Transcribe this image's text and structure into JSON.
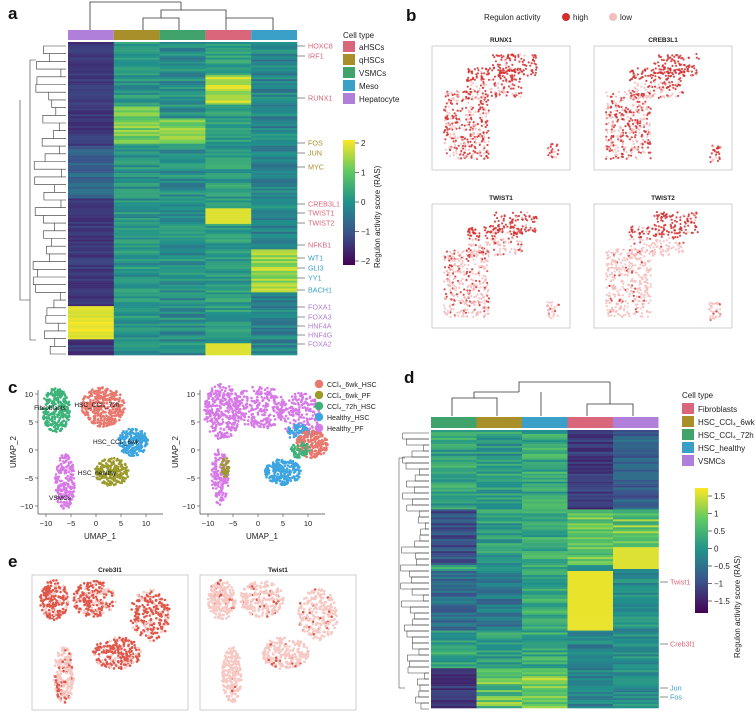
{
  "panels": {
    "a": "a",
    "b": "b",
    "c": "c",
    "d": "d",
    "e": "e"
  },
  "colors": {
    "aHSCs": "#d9667a",
    "qHSCs": "#a88f2a",
    "VSMCs": "#3fa36b",
    "Meso": "#3aa0c8",
    "Hepatocytes": "#b07fd9",
    "Fibroblasts": "#d9667a",
    "HSC_CCl4_6wk": "#a88f2a",
    "HSC_CCl4_72h": "#3fa36b",
    "HSC_healthy": "#3aa0c8",
    "VSMCs_d": "#b07fd9",
    "high": "#d32f2f",
    "low": "#f4bcbc",
    "CCl4_6wk_HSC": "#e8776d",
    "CCl4_6wk_PF": "#9c9a2b",
    "CCl4_72h_HSC": "#3db37a",
    "Healthy_HSC": "#3da5e0",
    "Healthy_PF": "#d77ae6"
  },
  "panel_a": {
    "legend_title": "Cell type",
    "legend_items": [
      "aHSCs",
      "qHSCs",
      "VSMCs",
      "Meso",
      "Hepatocytes"
    ],
    "column_order": [
      "Hepatocytes",
      "qHSCs",
      "VSMCs",
      "aHSCs",
      "Meso"
    ],
    "colorbar": {
      "label": "Regulon activity score (RAS)",
      "ticks": [
        "2",
        "1",
        "0",
        "−1",
        "−2"
      ]
    },
    "genes": [
      {
        "name": "HOXC8",
        "group": "aHSCs"
      },
      {
        "name": "IRF1",
        "group": "aHSCs"
      },
      {
        "name": "RUNX1",
        "group": "aHSCs"
      },
      {
        "name": "FOS",
        "group": "qHSCs"
      },
      {
        "name": "JUN",
        "group": "qHSCs"
      },
      {
        "name": "MYC",
        "group": "qHSCs"
      },
      {
        "name": "CREB3L1",
        "group": "aHSCs"
      },
      {
        "name": "TWIST1",
        "group": "aHSCs"
      },
      {
        "name": "TWIST2",
        "group": "aHSCs"
      },
      {
        "name": "NFKB1",
        "group": "aHSCs"
      },
      {
        "name": "WT1",
        "group": "Meso"
      },
      {
        "name": "GLI3",
        "group": "Meso"
      },
      {
        "name": "YY1",
        "group": "Meso"
      },
      {
        "name": "BACH1",
        "group": "Meso"
      },
      {
        "name": "FOXA1",
        "group": "Hepatocytes"
      },
      {
        "name": "FOXA3",
        "group": "Hepatocytes"
      },
      {
        "name": "HNF4A",
        "group": "Hepatocytes"
      },
      {
        "name": "HNF4G",
        "group": "Hepatocytes"
      },
      {
        "name": "FOXA2",
        "group": "Hepatocytes"
      }
    ]
  },
  "panel_b": {
    "legend_title": "Regulon activity",
    "legend_high": "high",
    "legend_low": "low",
    "plots": [
      "RUNX1",
      "CREB3L1",
      "TWIST1",
      "TWIST2"
    ]
  },
  "panel_c": {
    "legend_items": [
      {
        "label": "CCl₄_6wk_HSC",
        "key": "CCl4_6wk_HSC"
      },
      {
        "label": "CCl₄_6wk_PF",
        "key": "CCl4_6wk_PF"
      },
      {
        "label": "CCl₄_72h_HSC",
        "key": "CCl4_72h_HSC"
      },
      {
        "label": "Healthy_HSC",
        "key": "Healthy_HSC"
      },
      {
        "label": "Healthy_PF",
        "key": "Healthy_PF"
      }
    ],
    "cluster_labels": [
      "Fibroblasts",
      "HSC_CCl₄_72h",
      "HSC_CCl₄_6wk",
      "HSC_healthy",
      "VSMCs"
    ],
    "xlabel": "UMAP_1",
    "ylabel": "UMAP_2",
    "xticks": [
      "−10",
      "−5",
      "0",
      "5",
      "10"
    ],
    "yticks": [
      "10",
      "5",
      "0",
      "−5",
      "−10"
    ]
  },
  "panel_d": {
    "legend_title": "Cell type",
    "legend_items": [
      "Fibroblasts",
      "HSC_CCl₄_6wk",
      "HSC_CCl₄_72h",
      "HSC_healthy",
      "VSMCs"
    ],
    "colorbar": {
      "label": "Regulon activity score (RAS)",
      "ticks": [
        "1.5",
        "1",
        "0.5",
        "0",
        "−0.5",
        "−1",
        "−1.5"
      ]
    },
    "genes": [
      {
        "name": "Twist1",
        "group": "Fibroblasts"
      },
      {
        "name": "Creb3l1",
        "group": "Fibroblasts"
      },
      {
        "name": "Jun",
        "group": "HSC_healthy"
      },
      {
        "name": "Fos",
        "group": "HSC_healthy"
      }
    ]
  },
  "panel_e": {
    "plots": [
      "Creb3l1",
      "Twist1"
    ]
  }
}
